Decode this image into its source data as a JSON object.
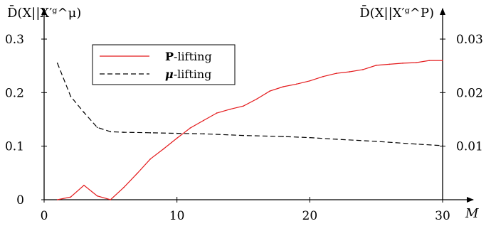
{
  "chart_data": {
    "type": "line",
    "xlabel": "M",
    "ylabel_left": "D̄(X||X′ᵍ^μ)",
    "ylabel_right": "D̄(X||X′ᵍ^P)",
    "xlim": [
      0,
      31
    ],
    "ylim_left": [
      0,
      0.34
    ],
    "ylim_right": [
      0,
      0.034
    ],
    "x_ticks": [
      0,
      10,
      20,
      30
    ],
    "x_tick_labels": [
      "0",
      "10",
      "20",
      "30"
    ],
    "y_left_ticks": [
      0,
      0.1,
      0.2,
      0.3
    ],
    "y_left_tick_labels": [
      "0",
      "0.1",
      "0.2",
      "0.3"
    ],
    "y_right_ticks": [
      0.01,
      0.02,
      0.03
    ],
    "y_right_tick_labels": [
      "0.01",
      "0.02",
      "0.03"
    ],
    "grid": false,
    "legend_position": "top-left",
    "series": [
      {
        "name": "P-lifting",
        "legend_bold": "P",
        "legend_rest": "-lifting",
        "color": "#e41a1c",
        "style": "solid",
        "axis": "right",
        "x": [
          1,
          2,
          3,
          4,
          5,
          6,
          7,
          8,
          9,
          10,
          11,
          12,
          13,
          14,
          15,
          16,
          17,
          18,
          19,
          20,
          21,
          22,
          23,
          24,
          25,
          26,
          27,
          28,
          29,
          30
        ],
        "values": [
          0.0,
          0.0005,
          0.0027,
          0.0007,
          0.0,
          0.0023,
          0.0049,
          0.0076,
          0.0095,
          0.0115,
          0.0134,
          0.0148,
          0.0162,
          0.0169,
          0.0175,
          0.0188,
          0.0203,
          0.0211,
          0.0216,
          0.0222,
          0.023,
          0.0236,
          0.0239,
          0.0243,
          0.0251,
          0.0253,
          0.0255,
          0.0256,
          0.026,
          0.026
        ]
      },
      {
        "name": "μ-lifting",
        "legend_bold": "μ",
        "legend_rest": "-lifting",
        "color": "#000000",
        "style": "dashed",
        "axis": "left",
        "x": [
          1,
          2,
          3,
          4,
          5,
          6,
          8,
          10,
          12,
          15,
          18,
          20,
          22,
          25,
          28,
          30
        ],
        "values": [
          0.255,
          0.193,
          0.163,
          0.135,
          0.127,
          0.126,
          0.125,
          0.124,
          0.123,
          0.12,
          0.118,
          0.116,
          0.113,
          0.109,
          0.104,
          0.101
        ]
      }
    ]
  }
}
